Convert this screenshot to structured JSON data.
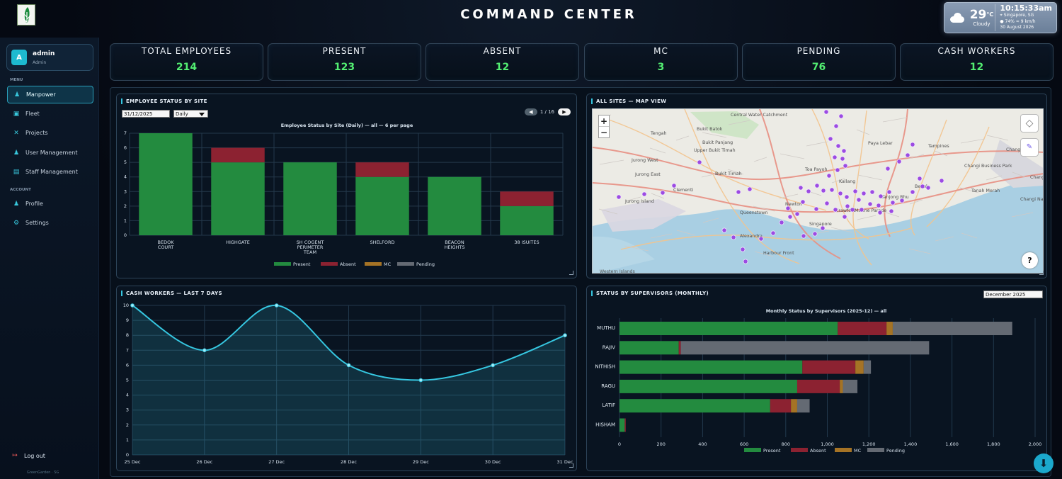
{
  "header": {
    "title": "COMMAND CENTER"
  },
  "weather": {
    "temperature": "29",
    "unit": "°C",
    "condition": "Cloudy",
    "time": "10:15:33am",
    "location": "Singapore, SG",
    "humidity": "74%",
    "wind": "9 km/h",
    "date": "30 August 2026"
  },
  "user": {
    "initial": "A",
    "name": "admin",
    "role": "Admin"
  },
  "sidebar": {
    "menu_label": "MENU",
    "items": [
      {
        "label": "Manpower"
      },
      {
        "label": "Fleet"
      },
      {
        "label": "Projects"
      },
      {
        "label": "User Management"
      },
      {
        "label": "Staff Management"
      }
    ],
    "account_label": "ACCOUNT",
    "account_items": [
      {
        "label": "Profile"
      },
      {
        "label": "Settings"
      }
    ],
    "logout": "Log out",
    "footer": "GreenGarden · SG"
  },
  "stats": [
    {
      "label": "TOTAL EMPLOYEES",
      "value": "214"
    },
    {
      "label": "PRESENT",
      "value": "123"
    },
    {
      "label": "ABSENT",
      "value": "12"
    },
    {
      "label": "MC",
      "value": "3"
    },
    {
      "label": "PENDING",
      "value": "76"
    },
    {
      "label": "CASH WORKERS",
      "value": "12"
    }
  ],
  "panels": {
    "site": {
      "title": "EMPLOYEE STATUS BY SITE",
      "date": "31/12/2025",
      "period": "Daily",
      "page": "1 / 16"
    },
    "map": {
      "title": "ALL SITES — MAP VIEW",
      "zoom_in": "+",
      "zoom_out": "−",
      "help": "?"
    },
    "cash": {
      "title": "CASH WORKERS — LAST 7 DAYS"
    },
    "supervisors": {
      "title": "STATUS BY SUPERVISORS (MONTHLY)",
      "month": "December 2025"
    }
  },
  "map_labels": [
    "Central Water Catchment",
    "Tengah",
    "Bukit Batok",
    "Bukit Panjang",
    "Upper Bukit Timah",
    "Jurong West",
    "Jurong East",
    "Bukit Timah",
    "Toa Payoh",
    "Paya Lebar",
    "Tampines",
    "Changi",
    "Clementi",
    "Queenstown",
    "Singapore",
    "Marine Parade",
    "Alexandra",
    "Harbour Front",
    "Kallang",
    "Bedok",
    "Jurong Island",
    "Western Islands",
    "Changi Bay",
    "Tanah Merah",
    "Changi Naval Base",
    "Changi Business Park",
    "Crawford",
    "Newton",
    "Tanjong Rhu"
  ],
  "chart_data": [
    {
      "type": "bar",
      "title": "Employee Status by Site (Daily) — all — 6 per page",
      "categories": [
        "BEDOK COURT",
        "HIGHGATE",
        "SH COGENT PERIMETER TEAM",
        "SHELFORD",
        "BEACON HEIGHTS",
        "38 ISUITES"
      ],
      "series": [
        {
          "name": "Present",
          "values": [
            7,
            5,
            5,
            4,
            4,
            2
          ],
          "color": "#238b3f"
        },
        {
          "name": "Absent",
          "values": [
            0,
            1,
            0,
            1,
            0,
            1
          ],
          "color": "#8c2231"
        },
        {
          "name": "MC",
          "values": [
            0,
            0,
            0,
            0,
            0,
            0
          ],
          "color": "#a57325"
        },
        {
          "name": "Pending",
          "values": [
            0,
            0,
            0,
            0,
            0,
            0
          ],
          "color": "#646a73"
        }
      ],
      "ylim": [
        0,
        7
      ],
      "ticks": [
        0,
        1,
        2,
        3,
        4,
        5,
        6,
        7
      ],
      "stacked": true,
      "grid": true,
      "legend_placement": "bottom"
    },
    {
      "type": "area",
      "title": "",
      "x": [
        "25 Dec",
        "26 Dec",
        "27 Dec",
        "28 Dec",
        "29 Dec",
        "30 Dec",
        "31 Dec"
      ],
      "values": [
        10,
        7,
        10,
        6,
        5,
        6,
        8
      ],
      "ylim": [
        0,
        10
      ],
      "ticks": [
        0,
        1,
        2,
        3,
        4,
        5,
        6,
        7,
        8,
        9,
        10
      ],
      "color": "#36c7e1",
      "grid": true
    },
    {
      "type": "bar",
      "title": "Monthly Status by Supervisors (2025-12) — all",
      "orientation": "horizontal",
      "categories": [
        "MUTHU",
        "RAJIV",
        "NITHISH",
        "RAGU",
        "LATIF",
        "HISHAM"
      ],
      "series": [
        {
          "name": "Present",
          "values": [
            1050,
            285,
            880,
            855,
            725,
            25
          ],
          "color": "#238b3f"
        },
        {
          "name": "Absent",
          "values": [
            235,
            10,
            255,
            205,
            100,
            5
          ],
          "color": "#8c2231"
        },
        {
          "name": "MC",
          "values": [
            30,
            0,
            40,
            15,
            30,
            0
          ],
          "color": "#a57325"
        },
        {
          "name": "Pending",
          "values": [
            575,
            1195,
            35,
            70,
            60,
            0
          ],
          "color": "#646a73"
        }
      ],
      "xlim": [
        0,
        2000
      ],
      "ticks": [
        "0",
        "200",
        "400",
        "600",
        "800",
        "1,000",
        "1,200",
        "1,400",
        "1,600",
        "1,800",
        "2,000"
      ],
      "stacked": true,
      "grid": true,
      "legend_placement": "bottom"
    }
  ]
}
